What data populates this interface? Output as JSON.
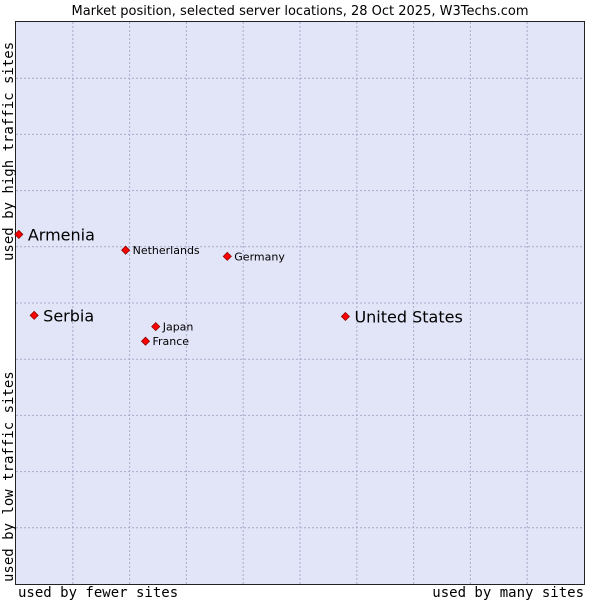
{
  "chart_data": {
    "type": "scatter",
    "title": "Market position, selected server locations, 28 Oct 2025, W3Techs.com",
    "xlabel_left": "used by fewer sites",
    "xlabel_right": "used by many sites",
    "ylabel_top": "used by high traffic sites",
    "ylabel_bottom": "used by low traffic sites",
    "xlim": [
      0,
      100
    ],
    "ylim": [
      0,
      100
    ],
    "grid": true,
    "points": [
      {
        "label": "Armenia",
        "x": 0.5,
        "y": 62.2,
        "emphasis": true
      },
      {
        "label": "Netherlands",
        "x": 19.3,
        "y": 59.4,
        "emphasis": false
      },
      {
        "label": "Germany",
        "x": 37.2,
        "y": 58.3,
        "emphasis": false
      },
      {
        "label": "Serbia",
        "x": 3.2,
        "y": 47.8,
        "emphasis": true
      },
      {
        "label": "United States",
        "x": 58.0,
        "y": 47.6,
        "emphasis": true
      },
      {
        "label": "Japan",
        "x": 24.6,
        "y": 45.8,
        "emphasis": false
      },
      {
        "label": "France",
        "x": 22.8,
        "y": 43.2,
        "emphasis": false
      }
    ],
    "colors": {
      "marker": "#ff0000",
      "marker_stroke": "#8b0000",
      "plot_background": "#e2e4f7"
    }
  }
}
